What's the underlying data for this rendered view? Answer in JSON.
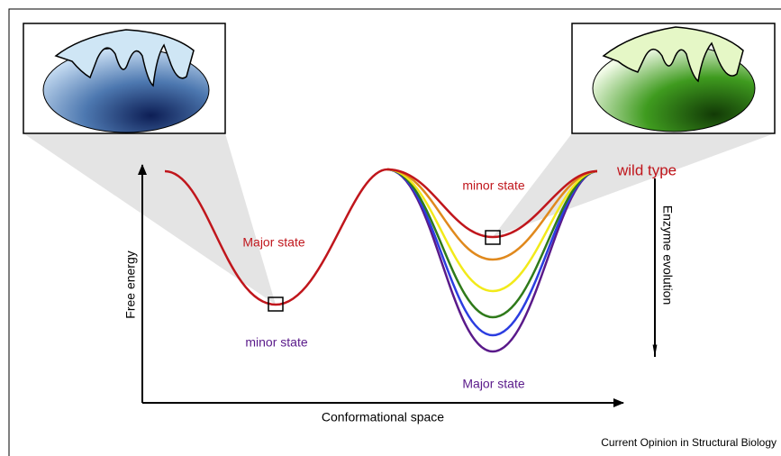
{
  "axes": {
    "y_label": "Free energy",
    "x_label": "Conformational space"
  },
  "evolution_label": "Enzyme evolution",
  "curve_labels": {
    "wild_type": "wild type",
    "left_upper": "Major state",
    "left_lower": "minor state",
    "right_upper": "minor state",
    "right_lower": "Major state"
  },
  "footer": "Current Opinion in Structural Biology"
}
